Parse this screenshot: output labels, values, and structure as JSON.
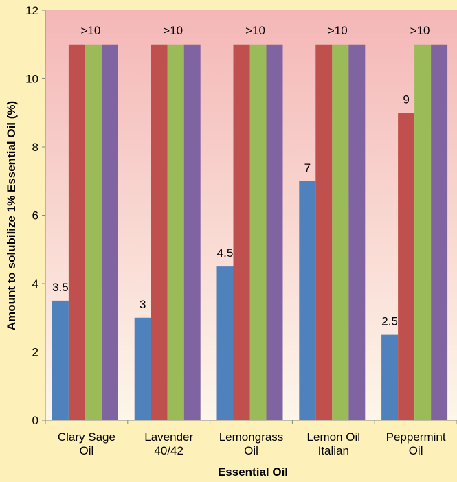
{
  "chart_data": {
    "type": "bar",
    "xlabel": "Essential Oil",
    "ylabel": "Amount to solubilize 1% Essential Oil (%)",
    "ylim": [
      0,
      12
    ],
    "yticks": [
      0,
      2,
      4,
      6,
      8,
      10,
      12
    ],
    "grid": false,
    "legend": "none",
    "categories": [
      [
        "Clary Sage",
        "Oil"
      ],
      [
        "Lavender",
        "40/42"
      ],
      [
        "Lemongrass",
        "Oil"
      ],
      [
        "Lemon Oil",
        "Italian"
      ],
      [
        "Peppermint",
        "Oil"
      ]
    ],
    "series": [
      {
        "color": "#4f81bd",
        "values": [
          3.5,
          3,
          4.5,
          7,
          2.5
        ],
        "labels": [
          "3.5",
          "3",
          "4.5",
          "7",
          "2.5"
        ]
      },
      {
        "color": "#c0504d",
        "values": [
          11,
          11,
          11,
          11,
          9
        ],
        "labels": [
          "",
          "",
          "",
          "",
          "9"
        ]
      },
      {
        "color": "#9bbb59",
        "values": [
          11,
          11,
          11,
          11,
          11
        ],
        "labels": [
          "",
          "",
          "",
          "",
          ""
        ]
      },
      {
        "color": "#8064a2",
        "values": [
          11,
          11,
          11,
          11,
          11
        ],
        "labels": [
          "",
          "",
          "",
          "",
          ""
        ]
      }
    ],
    "group_annotations": [
      ">10",
      ">10",
      ">10",
      ">10",
      ">10"
    ],
    "plot_background": {
      "top": "#f4b7b7",
      "bottom": "#fdf6ea"
    }
  }
}
